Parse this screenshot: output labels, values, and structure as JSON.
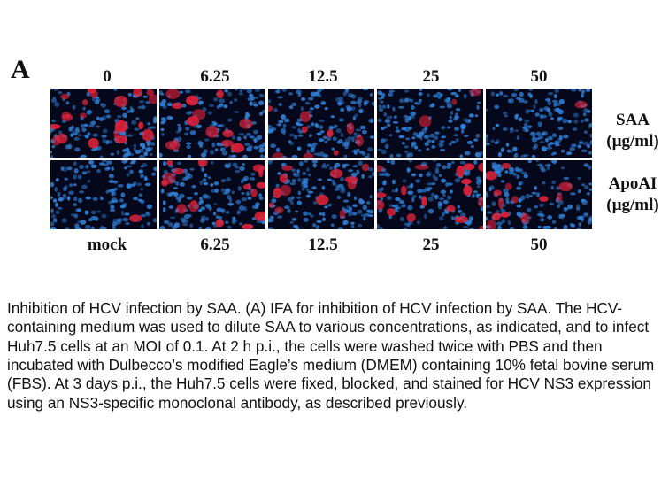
{
  "figure": {
    "panel_letter": "A",
    "top_labels": [
      "0",
      "6.25",
      "12.5",
      "25",
      "50"
    ],
    "bottom_labels": [
      "mock",
      "6.25",
      "12.5",
      "25",
      "50"
    ],
    "row_labels": [
      {
        "name": "SAA",
        "unit": "(µg/ml)"
      },
      {
        "name": "ApoAI",
        "unit": "(µg/ml)"
      }
    ],
    "colors": {
      "nuclei": "#2f7fd6",
      "ns3_stain": "#e0223a",
      "background": "#05081a"
    },
    "stain_intensity": {
      "saa_row": [
        0.9,
        0.6,
        0.4,
        0.15,
        0.05
      ],
      "apoai_row": [
        0.05,
        0.8,
        0.55,
        0.75,
        0.6
      ]
    }
  },
  "caption": "Inhibition of HCV infection by SAA. (A) IFA for inhibition of HCV infection by SAA. The HCV-containing medium was used to dilute SAA to various concentrations, as indicated, and to infect Huh7.5 cells at an MOI of 0.1. At 2 h p.i., the cells were washed twice with PBS and then incubated with Dulbecco’s modified Eagle’s medium (DMEM) containing 10% fetal bovine serum (FBS). At 3 days p.i., the Huh7.5 cells were fixed, blocked, and stained for HCV NS3 expression using an NS3-specific monoclonal antibody, as described previously."
}
